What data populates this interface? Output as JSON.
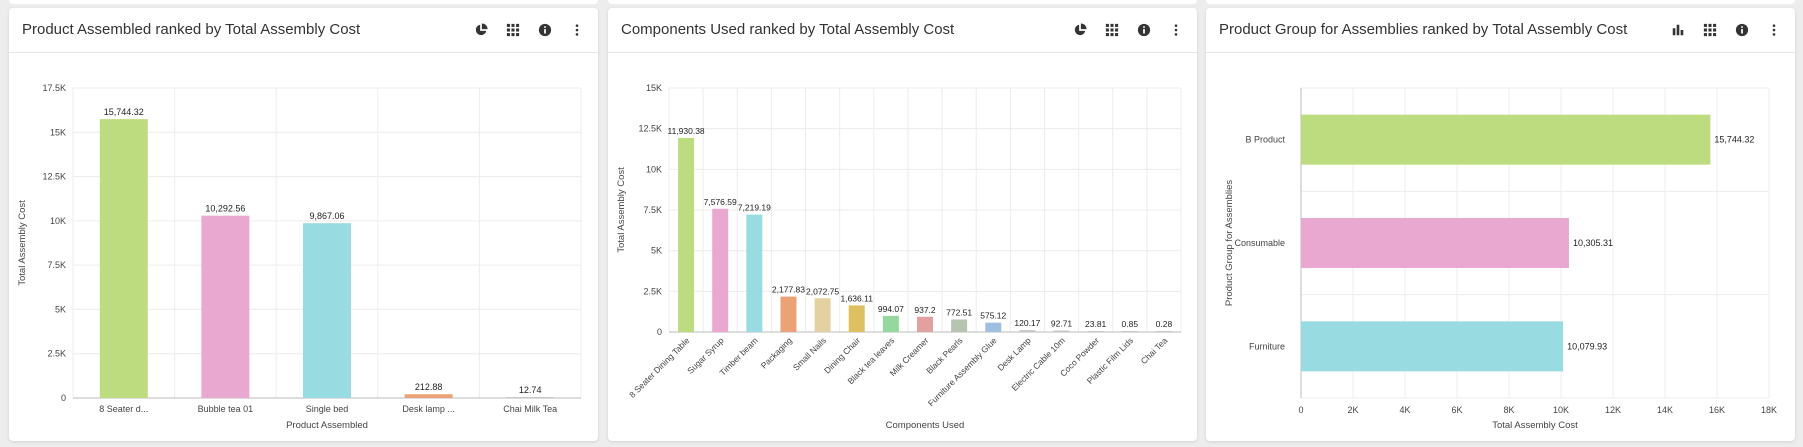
{
  "cards": [
    {
      "title": "Product Assembled ranked by Total Assembly Cost",
      "icons": [
        "pie-chart-icon",
        "grid-icon",
        "info-icon",
        "more-vertical-icon"
      ]
    },
    {
      "title": "Components Used ranked by Total Assembly Cost",
      "icons": [
        "pie-chart-icon",
        "grid-icon",
        "info-icon",
        "more-vertical-icon"
      ]
    },
    {
      "title": "Product Group for Assemblies ranked by Total Assembly Cost",
      "icons": [
        "bar-chart-icon",
        "grid-icon",
        "info-icon",
        "more-vertical-icon"
      ]
    }
  ],
  "chart_data": [
    {
      "type": "bar",
      "title": "Product Assembled ranked by Total Assembly Cost",
      "xlabel": "Product Assembled",
      "ylabel": "Total Assembly Cost",
      "ylim": [
        0,
        17500
      ],
      "yticks": [
        "0",
        "2.5K",
        "5K",
        "7.5K",
        "10K",
        "12.5K",
        "15K",
        "17.5K"
      ],
      "categories": [
        "8 Seater d...",
        "Bubble tea 01",
        "Single bed",
        "Desk lamp ...",
        "Chai Milk Tea"
      ],
      "values": [
        15744.32,
        10292.56,
        9867.06,
        212.88,
        12.74
      ],
      "labels": [
        "15,744.32",
        "10,292.56",
        "9,867.06",
        "212.88",
        "12.74"
      ],
      "colors": [
        "#bddc80",
        "#e8a8d0",
        "#98dbe0",
        "#eaa276",
        "#c8c8c8"
      ],
      "grid": true
    },
    {
      "type": "bar",
      "title": "Components Used ranked by Total Assembly Cost",
      "xlabel": "Components Used",
      "ylabel": "Total Assembly Cost",
      "ylim": [
        0,
        15000
      ],
      "yticks": [
        "0",
        "2.5K",
        "5K",
        "7.5K",
        "10K",
        "12.5K",
        "15K"
      ],
      "categories": [
        "8 Seater Dining Table",
        "Sugar Syrup",
        "Timber beam",
        "Packaging",
        "Small Nails",
        "Dining Chair",
        "Black tea leaves",
        "Milk Creamer",
        "Black Pearls",
        "Furniture Assembly Glue",
        "Desk Lamp",
        "Electric Cable 10m",
        "Coco Powder",
        "Plastic Film Lids",
        "Chai Tea"
      ],
      "values": [
        11930.38,
        7576.59,
        7219.19,
        2177.83,
        2072.75,
        1636.11,
        994.07,
        937.2,
        772.51,
        575.12,
        120.17,
        92.71,
        23.81,
        0.85,
        0.28
      ],
      "labels": [
        "11,930.38",
        "7,576.59",
        "7,219.19",
        "2,177.83",
        "2,072.75",
        "1,636.11",
        "994.07",
        "937.2",
        "772.51",
        "575.12",
        "120.17",
        "92.71",
        "23.81",
        "0.85",
        "0.28"
      ],
      "colors": [
        "#bddc80",
        "#e8a8d0",
        "#98dbe0",
        "#eaa276",
        "#e3d1a2",
        "#dfc060",
        "#94d8a0",
        "#e2a0a0",
        "#b6c4b0",
        "#9fbfe0",
        "#c8c8c8",
        "#c8c8c8",
        "#c8c8c8",
        "#c8c8c8",
        "#c8c8c8"
      ],
      "grid": true
    },
    {
      "type": "bar",
      "orientation": "horizontal",
      "title": "Product Group for Assemblies ranked by Total Assembly Cost",
      "xlabel": "Total Assembly Cost",
      "ylabel": "Product Group for Assemblies",
      "xlim": [
        0,
        18000
      ],
      "xticks": [
        "0",
        "2K",
        "4K",
        "6K",
        "8K",
        "10K",
        "12K",
        "14K",
        "16K",
        "18K"
      ],
      "categories": [
        "B Product",
        "Consumable",
        "Furniture"
      ],
      "values": [
        15744.32,
        10305.31,
        10079.93
      ],
      "labels": [
        "15,744.32",
        "10,305.31",
        "10,079.93"
      ],
      "colors": [
        "#bddc80",
        "#e8a8d0",
        "#98dbe0"
      ],
      "grid": true
    }
  ]
}
